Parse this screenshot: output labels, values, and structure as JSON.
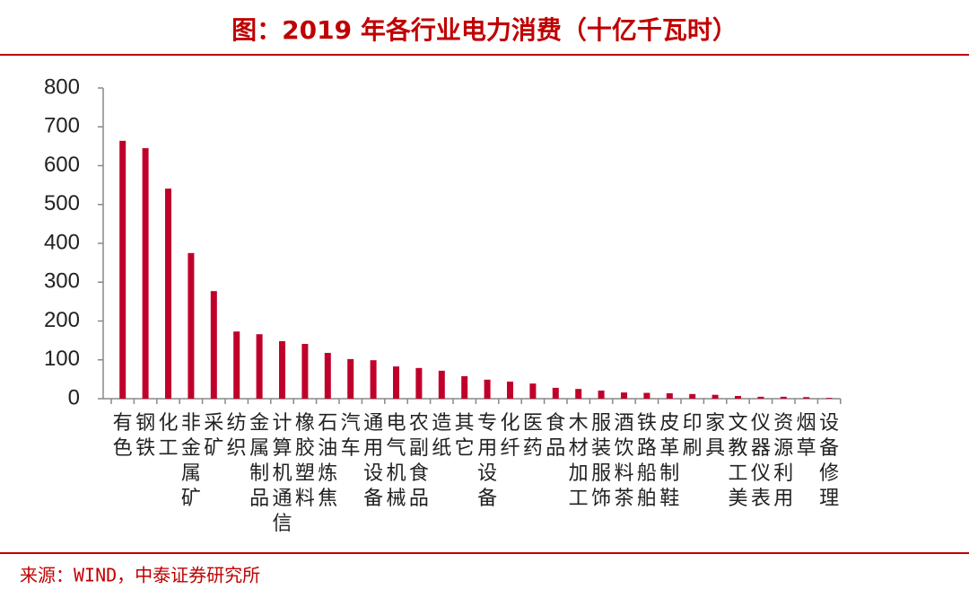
{
  "chart_data": {
    "type": "bar",
    "title": "图：2019 年各行业电力消费（十亿千瓦时）",
    "source": "来源：WIND，中泰证券研究所",
    "categories": [
      "有色",
      "钢铁",
      "化工",
      "非金属矿",
      "采矿",
      "纺织",
      "金属制品",
      "计算机通信",
      "橡胶塑料",
      "石油炼焦",
      "汽车",
      "通用设备",
      "电气机械",
      "农副食品",
      "造纸",
      "其它",
      "专用设备",
      "化纤",
      "医药",
      "食品",
      "木材加工",
      "服装服饰",
      "酒饮料茶",
      "铁路船舶",
      "皮革制鞋",
      "印刷",
      "家具",
      "文教工美",
      "仪器仪表",
      "资源利用",
      "烟草",
      "设备修理"
    ],
    "values": [
      664,
      645,
      541,
      375,
      277,
      173,
      166,
      148,
      141,
      118,
      102,
      99,
      83,
      79,
      72,
      58,
      49,
      44,
      39,
      28,
      25,
      21,
      16,
      15,
      14,
      12,
      10,
      7,
      5,
      5,
      4,
      2
    ],
    "color": "#c0002b",
    "ylim": [
      0,
      800
    ],
    "yticks": [
      0,
      100,
      200,
      300,
      400,
      500,
      600,
      700,
      800
    ],
    "grid": false
  }
}
